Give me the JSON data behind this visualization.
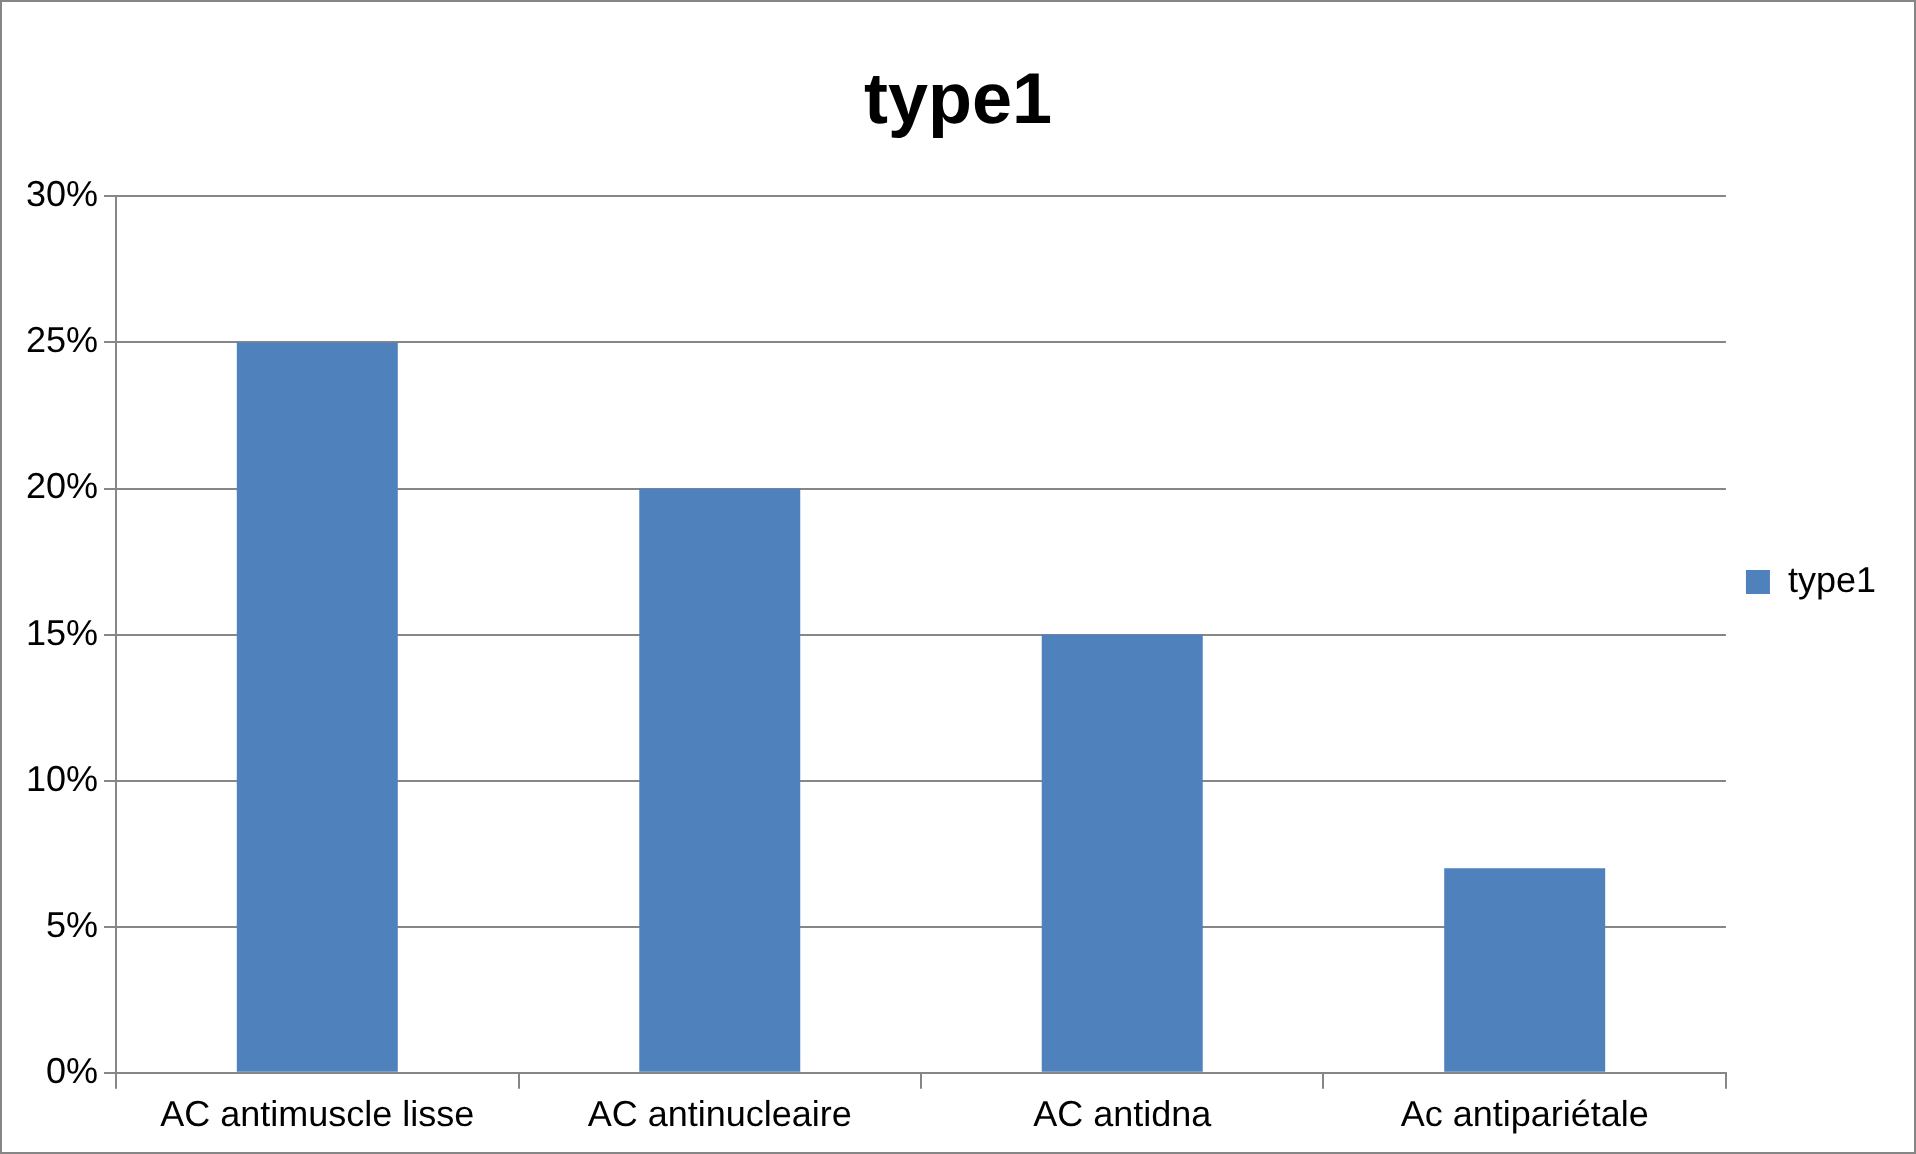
{
  "chart_data": {
    "type": "bar",
    "title": "type1",
    "categories": [
      "AC antimuscle lisse",
      "AC antinucleaire",
      "AC antidna",
      "Ac antipariétale"
    ],
    "series": [
      {
        "name": "type1",
        "color": "#4f81bd",
        "values": [
          25,
          20,
          15,
          7
        ]
      }
    ],
    "ylim": [
      0,
      30
    ],
    "yticks": [
      {
        "value": 0,
        "label": "0%"
      },
      {
        "value": 5,
        "label": "5%"
      },
      {
        "value": 10,
        "label": "10%"
      },
      {
        "value": 15,
        "label": "15%"
      },
      {
        "value": 20,
        "label": "20%"
      },
      {
        "value": 25,
        "label": "25%"
      },
      {
        "value": 30,
        "label": "30%"
      }
    ],
    "grid": "y",
    "legend": "right"
  }
}
